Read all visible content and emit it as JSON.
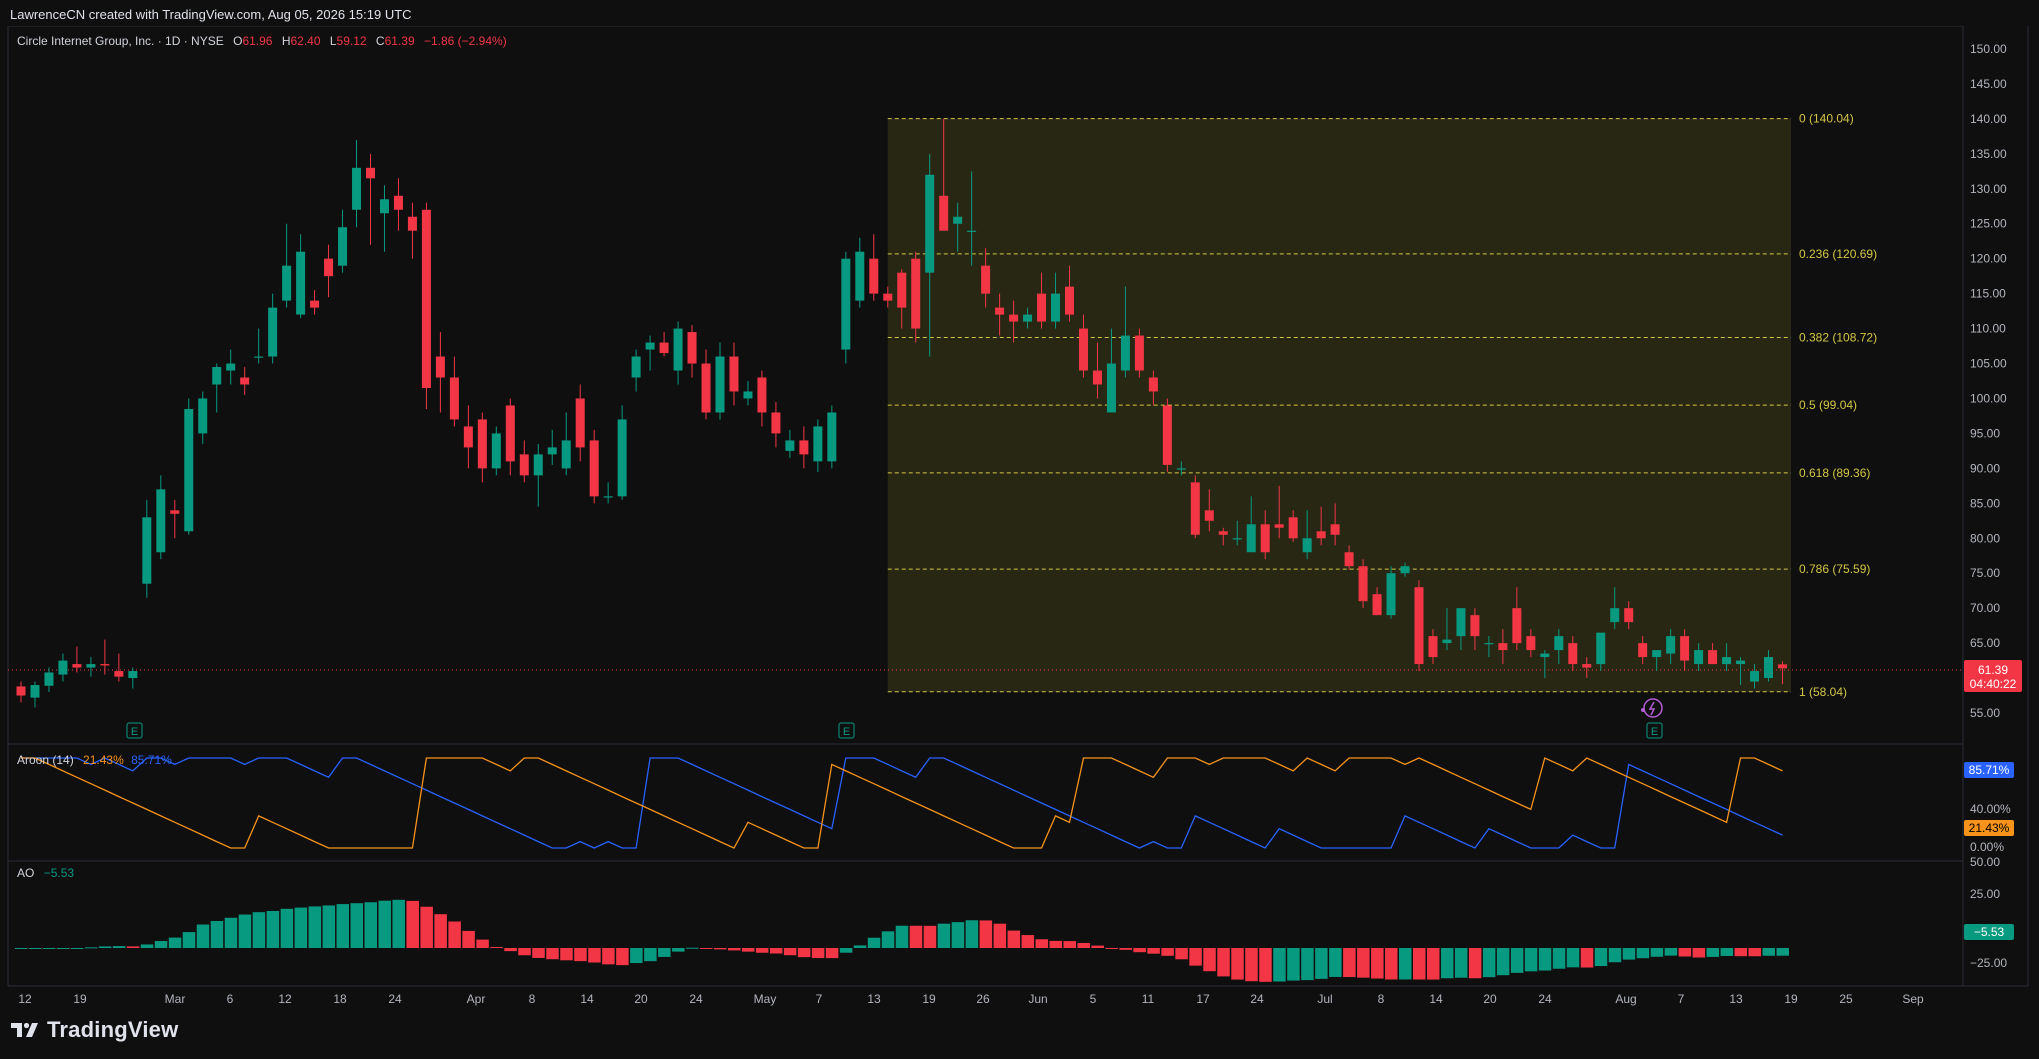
{
  "header": {
    "attribution": "LawrenceCN created with TradingView.com, Aug 05, 2026 15:19 UTC"
  },
  "legend": {
    "symbol": "Circle Internet Group, Inc. · 1D · NYSE",
    "o_label": "O",
    "o_value": "61.96",
    "h_label": "H",
    "h_value": "62.40",
    "l_label": "L",
    "l_value": "59.12",
    "c_label": "C",
    "c_value": "61.39",
    "change": "−1.86 (−2.94%)"
  },
  "price_axis": {
    "labels": [
      "150.00",
      "145.00",
      "140.00",
      "135.00",
      "130.00",
      "125.00",
      "120.00",
      "115.00",
      "110.00",
      "105.00",
      "100.00",
      "95.00",
      "90.00",
      "85.00",
      "80.00",
      "75.00",
      "70.00",
      "65.00",
      "55.00"
    ],
    "last_price": "61.39",
    "countdown": "04:40:22"
  },
  "fib": {
    "levels": [
      {
        "ratio": 0,
        "price": 140.04,
        "label": "0 (140.04)"
      },
      {
        "ratio": 0.236,
        "price": 120.69,
        "label": "0.236 (120.69)"
      },
      {
        "ratio": 0.382,
        "price": 108.72,
        "label": "0.382 (108.72)"
      },
      {
        "ratio": 0.5,
        "price": 99.04,
        "label": "0.5 (99.04)"
      },
      {
        "ratio": 0.618,
        "price": 89.36,
        "label": "0.618 (89.36)"
      },
      {
        "ratio": 0.786,
        "price": 75.59,
        "label": "0.786 (75.59)"
      },
      {
        "ratio": 1,
        "price": 58.04,
        "label": "1 (58.04)"
      }
    ]
  },
  "aroon": {
    "title": "Aroon (14)",
    "down_value": "21.43%",
    "up_value": "85.71%",
    "axis_labels": [
      "40.00%",
      "0.00%"
    ],
    "up_color": "#2962ff",
    "down_color": "#f7931a"
  },
  "ao": {
    "title": "AO",
    "value": "−5.53",
    "axis_labels": [
      "50.00",
      "25.00",
      "0.00",
      "−25.00"
    ],
    "up_color": "#089981",
    "down_color": "#f23645"
  },
  "time_axis": {
    "labels": [
      "12",
      "19",
      "Mar",
      "6",
      "12",
      "18",
      "24",
      "Apr",
      "8",
      "14",
      "20",
      "24",
      "May",
      "7",
      "13",
      "19",
      "26",
      "Jun",
      "5",
      "11",
      "17",
      "24",
      "Jul",
      "8",
      "14",
      "20",
      "24",
      "Aug",
      "7",
      "13",
      "19",
      "25",
      "Sep"
    ]
  },
  "earnings_marker": "E",
  "brand": "TradingView",
  "colors": {
    "up": "#089981",
    "down": "#f23645",
    "fib": "#d4c745",
    "fib_fill": "#2b2a14",
    "bg": "#0f0f0f"
  },
  "chart_data": {
    "type": "candlestick",
    "title": "Circle Internet Group, Inc. · 1D · NYSE",
    "ylim": [
      52,
      152
    ],
    "candles": [
      [
        58.8,
        59.5,
        56.5,
        57.5
      ],
      [
        57.2,
        59.5,
        55.8,
        59.0
      ],
      [
        58.9,
        61.5,
        58.0,
        60.8
      ],
      [
        60.5,
        63.5,
        59.5,
        62.5
      ],
      [
        62.0,
        64.5,
        60.8,
        61.5
      ],
      [
        61.5,
        63.0,
        60.2,
        62.0
      ],
      [
        62.0,
        65.5,
        60.5,
        61.8
      ],
      [
        61.0,
        63.5,
        59.5,
        60.2
      ],
      [
        60.0,
        61.5,
        58.5,
        61.0
      ],
      [
        73.5,
        85.5,
        71.5,
        83.0
      ],
      [
        78.0,
        89.0,
        77.0,
        87.0
      ],
      [
        84.0,
        85.5,
        80.0,
        83.5
      ],
      [
        81.0,
        100.0,
        80.5,
        98.5
      ],
      [
        95.0,
        101.0,
        93.5,
        100.0
      ],
      [
        102.0,
        105.0,
        98.0,
        104.5
      ],
      [
        104.0,
        107.0,
        102.0,
        105.0
      ],
      [
        103.0,
        104.5,
        100.5,
        102.0
      ],
      [
        106.0,
        110.0,
        105.0,
        106.0
      ],
      [
        106.0,
        115.0,
        105.0,
        113.0
      ],
      [
        114.0,
        125.0,
        113.0,
        119.0
      ],
      [
        112.0,
        123.5,
        111.5,
        121.0
      ],
      [
        114.0,
        115.5,
        112.0,
        113.0
      ],
      [
        120.0,
        122.0,
        114.5,
        117.5
      ],
      [
        119.0,
        127.0,
        118.0,
        124.5
      ],
      [
        127.0,
        137.0,
        124.5,
        133.0
      ],
      [
        133.0,
        135.0,
        122.0,
        131.5
      ],
      [
        126.5,
        130.5,
        121.0,
        128.5
      ],
      [
        129.0,
        131.5,
        124.0,
        127.0
      ],
      [
        126.0,
        128.0,
        120.0,
        124.0
      ],
      [
        127.0,
        128.0,
        98.5,
        101.5
      ],
      [
        106.0,
        109.5,
        98.0,
        103.0
      ],
      [
        103.0,
        106.0,
        96.0,
        97.0
      ],
      [
        96.0,
        99.0,
        90.0,
        93.0
      ],
      [
        97.0,
        98.0,
        88.0,
        90.0
      ],
      [
        90.0,
        96.0,
        89.0,
        95.0
      ],
      [
        99.0,
        100.0,
        89.0,
        91.0
      ],
      [
        92.0,
        94.0,
        88.0,
        89.0
      ],
      [
        89.0,
        93.5,
        84.5,
        92.0
      ],
      [
        92.0,
        95.5,
        90.5,
        93.0
      ],
      [
        90.0,
        98.0,
        89.0,
        94.0
      ],
      [
        100.0,
        102.0,
        91.0,
        93.0
      ],
      [
        94.0,
        95.5,
        85.0,
        86.0
      ],
      [
        86.0,
        88.0,
        85.0,
        86.0
      ],
      [
        86.0,
        99.0,
        85.5,
        97.0
      ],
      [
        103.0,
        107.0,
        101.0,
        106.0
      ],
      [
        107.0,
        109.0,
        104.0,
        108.0
      ],
      [
        108.0,
        109.5,
        106.0,
        106.5
      ],
      [
        104.0,
        111.0,
        102.0,
        110.0
      ],
      [
        109.5,
        110.5,
        103.0,
        105.0
      ],
      [
        105.0,
        107.0,
        97.0,
        98.0
      ],
      [
        98.0,
        108.0,
        97.0,
        106.0
      ],
      [
        106.0,
        108.0,
        99.0,
        101.0
      ],
      [
        100.0,
        102.5,
        99.0,
        101.0
      ],
      [
        103.0,
        104.0,
        96.0,
        98.0
      ],
      [
        98.0,
        99.5,
        93.0,
        95.0
      ],
      [
        92.5,
        95.5,
        91.5,
        94.0
      ],
      [
        94.0,
        96.0,
        90.0,
        92.0
      ],
      [
        91.0,
        97.0,
        89.5,
        96.0
      ],
      [
        91.0,
        99.0,
        90.0,
        98.0
      ],
      [
        107.0,
        121.0,
        105.0,
        120.0
      ],
      [
        114.0,
        123.0,
        113.0,
        121.0
      ],
      [
        120.0,
        123.5,
        114.0,
        115.0
      ],
      [
        115.0,
        116.0,
        113.0,
        114.0
      ],
      [
        118.0,
        118.5,
        110.0,
        113.0
      ],
      [
        120.0,
        121.0,
        108.0,
        110.0
      ],
      [
        118.0,
        135.0,
        106.0,
        132.0
      ],
      [
        129.0,
        140.0,
        124.0,
        124.0
      ],
      [
        125.0,
        128.0,
        121.0,
        126.0
      ],
      [
        124.0,
        132.5,
        119.0,
        124.0
      ],
      [
        119.0,
        121.5,
        113.0,
        115.0
      ],
      [
        113.0,
        115.0,
        109.0,
        112.0
      ],
      [
        112.0,
        114.0,
        108.0,
        111.0
      ],
      [
        111.0,
        113.0,
        110.0,
        112.0
      ],
      [
        115.0,
        118.0,
        110.0,
        111.0
      ],
      [
        111.0,
        118.0,
        110.0,
        115.0
      ],
      [
        116.0,
        119.0,
        111.0,
        112.0
      ],
      [
        110.0,
        112.0,
        103.0,
        104.0
      ],
      [
        104.0,
        108.0,
        100.0,
        102.0
      ],
      [
        98.0,
        110.0,
        98.0,
        105.0
      ],
      [
        104.0,
        116.0,
        103.0,
        109.0
      ],
      [
        109.0,
        110.0,
        103.0,
        104.0
      ],
      [
        103.0,
        104.0,
        99.0,
        101.0
      ],
      [
        99.0,
        100.0,
        89.5,
        90.5
      ],
      [
        90.0,
        91.0,
        89.0,
        90.0
      ],
      [
        88.0,
        89.0,
        80.0,
        80.5
      ],
      [
        84.0,
        87.0,
        81.0,
        82.5
      ],
      [
        81.0,
        81.5,
        79.0,
        80.5
      ],
      [
        80.0,
        82.5,
        79.0,
        80.0
      ],
      [
        78.0,
        86.0,
        78.0,
        82.0
      ],
      [
        82.0,
        84.0,
        77.0,
        78.0
      ],
      [
        82.0,
        87.5,
        80.0,
        81.5
      ],
      [
        83.0,
        84.0,
        79.5,
        80.0
      ],
      [
        78.0,
        84.0,
        77.0,
        80.0
      ],
      [
        81.0,
        84.5,
        79.0,
        80.0
      ],
      [
        82.0,
        85.0,
        79.0,
        80.5
      ],
      [
        78.0,
        79.0,
        75.5,
        76.0
      ],
      [
        76.0,
        77.0,
        70.0,
        71.0
      ],
      [
        72.0,
        73.0,
        69.0,
        69.0
      ],
      [
        69.0,
        76.0,
        68.5,
        75.0
      ],
      [
        75.0,
        76.5,
        74.5,
        76.0
      ],
      [
        73.0,
        74.0,
        61.0,
        62.0
      ],
      [
        66.0,
        67.0,
        62.0,
        63.0
      ],
      [
        65.0,
        70.0,
        64.0,
        65.5
      ],
      [
        66.0,
        69.5,
        64.0,
        70.0
      ],
      [
        69.0,
        70.0,
        64.0,
        66.0
      ],
      [
        65.0,
        66.0,
        63.0,
        65.0
      ],
      [
        65.0,
        67.0,
        62.0,
        64.0
      ],
      [
        70.0,
        73.0,
        64.0,
        65.0
      ],
      [
        66.0,
        67.0,
        63.0,
        64.0
      ],
      [
        63.0,
        64.0,
        60.0,
        63.5
      ],
      [
        64.0,
        67.0,
        62.0,
        66.0
      ],
      [
        65.0,
        66.0,
        61.0,
        62.0
      ],
      [
        62.0,
        63.0,
        60.0,
        61.5
      ],
      [
        62.0,
        66.0,
        61.0,
        66.5
      ],
      [
        68.0,
        73.0,
        67.0,
        70.0
      ],
      [
        70.0,
        71.0,
        67.0,
        68.0
      ],
      [
        65.0,
        66.0,
        62.0,
        63.0
      ],
      [
        63.0,
        64.0,
        61.0,
        64.0
      ],
      [
        63.5,
        67.0,
        62.0,
        66.0
      ],
      [
        66.0,
        67.0,
        61.0,
        62.5
      ],
      [
        62.0,
        65.0,
        61.0,
        64.0
      ],
      [
        64.0,
        65.0,
        62.0,
        62.0
      ],
      [
        62.0,
        65.0,
        61.0,
        63.0
      ],
      [
        62.0,
        63.0,
        59.0,
        62.5
      ],
      [
        59.5,
        62.0,
        58.5,
        61.0
      ],
      [
        60.0,
        64.0,
        59.5,
        63.0
      ],
      [
        61.96,
        62.4,
        59.12,
        61.39
      ]
    ]
  }
}
